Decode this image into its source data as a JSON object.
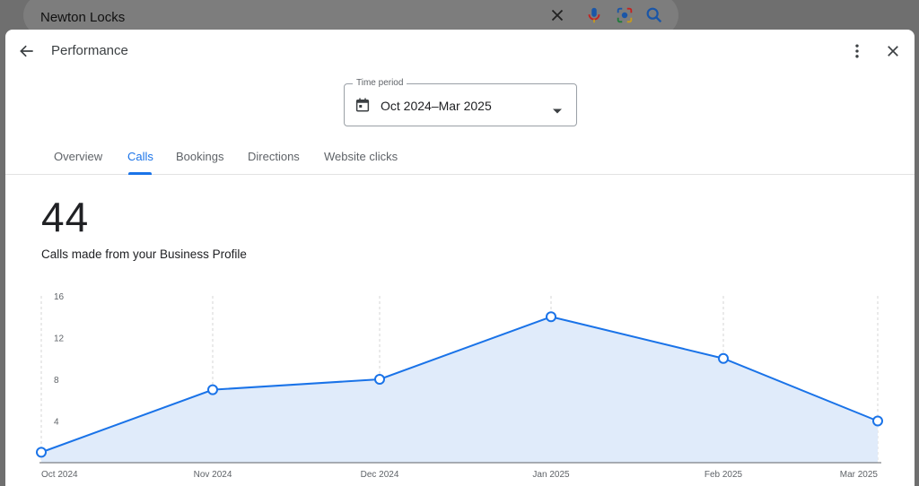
{
  "background": {
    "search_query": "Newton Locks"
  },
  "header": {
    "title": "Performance"
  },
  "time_period": {
    "label": "Time period",
    "value": "Oct 2024–Mar 2025"
  },
  "tabs": [
    {
      "label": "Overview",
      "active": false
    },
    {
      "label": "Calls",
      "active": true
    },
    {
      "label": "Bookings",
      "active": false
    },
    {
      "label": "Directions",
      "active": false
    },
    {
      "label": "Website clicks",
      "active": false
    }
  ],
  "metric": {
    "value": "44",
    "description": "Calls made from your Business Profile"
  },
  "colors": {
    "accent": "#1a73e8",
    "area_fill": "#e0ebfa",
    "text": "#202124"
  },
  "icons": [
    "close-icon",
    "mic-icon",
    "lens-icon",
    "search-icon",
    "back-arrow-icon",
    "more-vert-icon",
    "calendar-icon",
    "dropdown-caret-icon"
  ],
  "chart_data": {
    "type": "area",
    "categories": [
      "Oct 2024",
      "Nov 2024",
      "Dec 2024",
      "Jan 2025",
      "Feb 2025",
      "Mar 2025"
    ],
    "values": [
      1,
      7,
      8,
      14,
      10,
      4
    ],
    "yticks": [
      4,
      8,
      12,
      16
    ],
    "ylim": [
      0,
      16
    ],
    "grid": "vertical dashed",
    "title": "",
    "xlabel": "",
    "ylabel": ""
  }
}
